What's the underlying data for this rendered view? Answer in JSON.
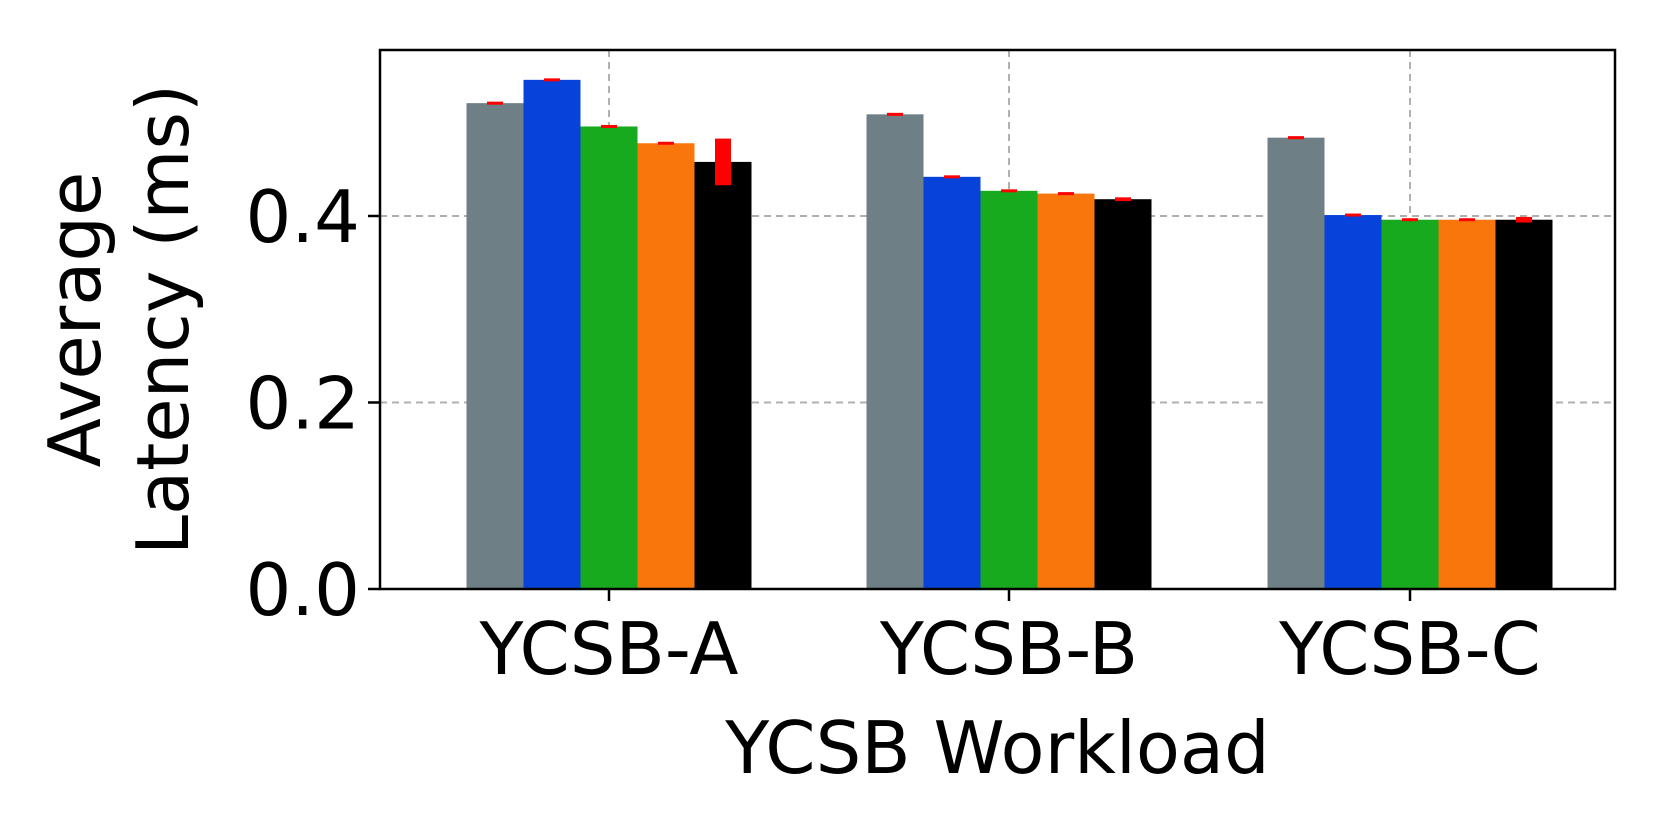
{
  "chart_data": {
    "type": "bar",
    "title": "",
    "xlabel": "YCSB Workload",
    "ylabel_lines": [
      "Average",
      "Latency (ms)"
    ],
    "categories": [
      "YCSB-A",
      "YCSB-B",
      "YCSB-C"
    ],
    "yticks": [
      0.0,
      0.2,
      0.4
    ],
    "ytick_labels": [
      "0.0",
      "0.2",
      "0.4"
    ],
    "ylim": [
      0,
      0.578
    ],
    "grid": true,
    "grid_color": "#b0b0b0",
    "errorbar_color": "#ff0000",
    "series": [
      {
        "color": "#6e7f86",
        "values": [
          0.521,
          0.509,
          0.484
        ],
        "errors": [
          0.001,
          0.001,
          0.001
        ]
      },
      {
        "color": "#0743db",
        "values": [
          0.546,
          0.442,
          0.401
        ],
        "errors": [
          0.001,
          0.001,
          0.001
        ]
      },
      {
        "color": "#18aa1e",
        "values": [
          0.496,
          0.427,
          0.396
        ],
        "errors": [
          0.001,
          0.001,
          0.001
        ]
      },
      {
        "color": "#f8760b",
        "values": [
          0.478,
          0.424,
          0.396
        ],
        "errors": [
          0.001,
          0.001,
          0.001
        ]
      },
      {
        "color": "#000000",
        "values": [
          0.458,
          0.418,
          0.396
        ],
        "errors": [
          0.025,
          0.002,
          0.003
        ]
      }
    ]
  }
}
